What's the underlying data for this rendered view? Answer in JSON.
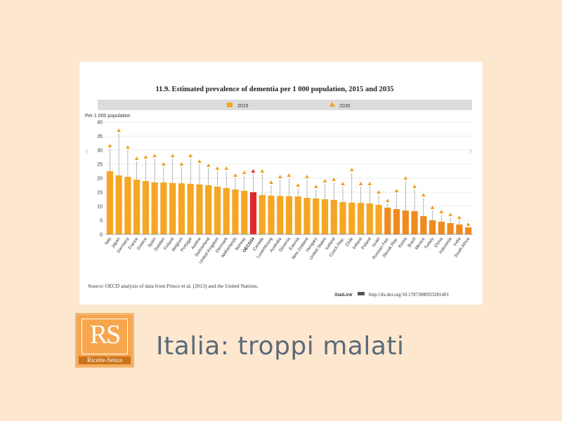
{
  "slide": {
    "title": "Italia: troppi malati",
    "logo_text": "RS",
    "logo_caption": "Ricette-Senza",
    "nav_prev_icon": "chevron-left-icon",
    "nav_next_icon": "chevron-right-icon"
  },
  "chart_data": {
    "type": "bar",
    "title": "11.9.  Estimated prevalence of dementia per 1 000 population, 2015 and 2035",
    "ylabel": "Per 1 000 population",
    "ylim": [
      0,
      40
    ],
    "yticks": [
      0,
      5,
      10,
      15,
      20,
      25,
      30,
      35,
      40
    ],
    "legend": [
      "2015",
      "2035"
    ],
    "legend_placement": "top",
    "grid": true,
    "categories": [
      "Italy",
      "Japan",
      "Germany",
      "France",
      "Greece",
      "Spain",
      "Sweden",
      "Finland",
      "Belgium",
      "Portugal",
      "Austria",
      "Switzerland",
      "United Kingdom",
      "Denmark",
      "Netherlands",
      "Norway",
      "OECD34",
      "Canada",
      "Luxembourg",
      "Australia",
      "Slovenia",
      "Estonia",
      "New Zealand",
      "Hungary",
      "United States",
      "Iceland",
      "Czech Rep.",
      "Chile",
      "Ireland",
      "Poland",
      "Israel",
      "Russian Fed.",
      "Slovak Rep.",
      "Korea",
      "Brazil",
      "Mexico",
      "Turkey",
      "China",
      "Indonesia",
      "India",
      "South Africa"
    ],
    "series": [
      {
        "name": "2015",
        "values": [
          22.5,
          21,
          20.5,
          19.5,
          19,
          18.5,
          18.5,
          18.3,
          18.2,
          18,
          17.8,
          17.5,
          17,
          16.5,
          16,
          15.5,
          15,
          14,
          13.8,
          13.7,
          13.6,
          13.5,
          13,
          12.8,
          12.5,
          12.3,
          11.5,
          11.3,
          11.2,
          11,
          10.5,
          9.5,
          9,
          8.5,
          8.3,
          6.5,
          5,
          4.5,
          4,
          3.5,
          2.5
        ]
      },
      {
        "name": "2035",
        "values": [
          31.5,
          37,
          31,
          27,
          27.5,
          28,
          25,
          28,
          25,
          28,
          26,
          24.5,
          23.5,
          23.5,
          21,
          22,
          22.5,
          22.5,
          18.5,
          20.5,
          21,
          17.5,
          20.5,
          17,
          19,
          19.5,
          18,
          23,
          18,
          18,
          15,
          12,
          15.5,
          20,
          17,
          14,
          9.5,
          8,
          7,
          6,
          3.5
        ]
      }
    ],
    "highlight": {
      "OECD34": "#e0262f",
      "Russian Fed.": "#f08a1f",
      "Slovak Rep.": "#f08a1f",
      "Korea": "#f08a1f",
      "Brazil": "#f08a1f",
      "Mexico": "#f08a1f",
      "Turkey": "#f08a1f",
      "China": "#f08a1f",
      "Indonesia": "#f08a1f",
      "India": "#f08a1f",
      "South Africa": "#f08a1f"
    },
    "colors": {
      "bar": "#f5a623",
      "marker": "#f0a01e",
      "oecd": "#e0262f",
      "partner": "#f08a1f",
      "legend_bg": "#dcdcdc"
    },
    "source": "Source:  OECD analysis of data from Prince et al. (2013) and the United Nations.",
    "statlink_label": "StatLink",
    "statlink_url": "http://dx.doi.org/10.1787/888933281401"
  }
}
